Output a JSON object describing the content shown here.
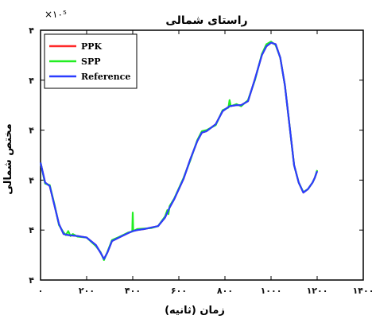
{
  "chart_data": {
    "type": "line",
    "title": "راستای شمالی",
    "xlabel": "زمان (ثانیه)",
    "ylabel": "مختص شمالی",
    "y_exponent_label": "×۱۰⁵",
    "xlim": [
      0,
      1400
    ],
    "ylim": [
      0,
      5
    ],
    "x_ticks": [
      0,
      200,
      400,
      600,
      800,
      1000,
      1200,
      1400
    ],
    "x_tick_labels": [
      "۰",
      "۲۰۰",
      "۴۰۰",
      "۶۰۰",
      "۸۰۰",
      "۱۰۰۰",
      "۱۲۰۰",
      "۱۴۰۰"
    ],
    "y_ticks": [
      0,
      1,
      2,
      3,
      4,
      5
    ],
    "y_tick_labels": [
      "۴",
      "۴",
      "۴",
      "۴",
      "۴",
      "۴"
    ],
    "legend_position": "top-left",
    "grid": false,
    "series": [
      {
        "name": "PPK",
        "color": "#ff2a2a",
        "x": [
          0,
          20,
          40,
          60,
          80,
          100,
          120,
          160,
          200,
          240,
          260,
          275,
          290,
          310,
          340,
          380,
          400,
          420,
          450,
          480,
          510,
          540,
          560,
          580,
          620,
          650,
          680,
          700,
          720,
          760,
          790,
          820,
          850,
          870,
          900,
          930,
          960,
          980,
          1000,
          1020,
          1040,
          1060,
          1080,
          1100,
          1120,
          1140,
          1160,
          1180,
          1190,
          1200
        ],
        "y": [
          2.35,
          1.95,
          1.88,
          1.5,
          1.12,
          0.92,
          0.9,
          0.88,
          0.85,
          0.7,
          0.55,
          0.42,
          0.55,
          0.78,
          0.85,
          0.94,
          0.98,
          1.0,
          1.02,
          1.05,
          1.08,
          1.25,
          1.45,
          1.62,
          2.02,
          2.42,
          2.78,
          2.95,
          2.98,
          3.12,
          3.38,
          3.48,
          3.5,
          3.5,
          3.58,
          4.02,
          4.5,
          4.68,
          4.75,
          4.72,
          4.45,
          3.9,
          3.1,
          2.3,
          1.95,
          1.75,
          1.82,
          1.95,
          2.05,
          2.18
        ]
      },
      {
        "name": "SPP",
        "color": "#22ee22",
        "x": [
          0,
          20,
          40,
          60,
          80,
          100,
          110,
          120,
          130,
          140,
          160,
          200,
          240,
          260,
          275,
          290,
          310,
          340,
          380,
          398,
          400,
          402,
          420,
          450,
          480,
          510,
          540,
          550,
          555,
          560,
          580,
          620,
          650,
          680,
          700,
          720,
          760,
          790,
          815,
          820,
          825,
          850,
          870,
          900,
          930,
          960,
          980,
          1000,
          1020,
          1040,
          1060,
          1080,
          1100,
          1120,
          1140,
          1160,
          1180,
          1190,
          1200
        ],
        "y": [
          2.35,
          1.93,
          1.9,
          1.52,
          1.1,
          0.95,
          0.9,
          0.98,
          0.88,
          0.92,
          0.87,
          0.85,
          0.68,
          0.56,
          0.4,
          0.56,
          0.8,
          0.86,
          0.95,
          0.97,
          1.35,
          0.98,
          1.02,
          1.03,
          1.04,
          1.08,
          1.27,
          1.4,
          1.32,
          1.48,
          1.63,
          2.04,
          2.4,
          2.8,
          2.98,
          3.0,
          3.1,
          3.4,
          3.45,
          3.6,
          3.48,
          3.52,
          3.48,
          3.6,
          4.0,
          4.52,
          4.72,
          4.77,
          4.7,
          4.45,
          3.9,
          3.1,
          2.3,
          1.95,
          1.76,
          1.82,
          1.95,
          2.05,
          2.2
        ]
      },
      {
        "name": "Reference",
        "color": "#2b3cff",
        "x": [
          0,
          20,
          40,
          60,
          80,
          100,
          120,
          160,
          200,
          240,
          260,
          275,
          290,
          310,
          340,
          380,
          400,
          420,
          450,
          480,
          510,
          540,
          560,
          580,
          620,
          650,
          680,
          700,
          720,
          760,
          790,
          820,
          850,
          870,
          900,
          930,
          960,
          980,
          1000,
          1020,
          1040,
          1060,
          1080,
          1100,
          1120,
          1140,
          1160,
          1180,
          1190,
          1200
        ],
        "y": [
          2.35,
          1.95,
          1.88,
          1.5,
          1.12,
          0.92,
          0.9,
          0.88,
          0.85,
          0.7,
          0.55,
          0.42,
          0.55,
          0.78,
          0.85,
          0.94,
          0.98,
          1.0,
          1.02,
          1.05,
          1.08,
          1.25,
          1.45,
          1.62,
          2.02,
          2.42,
          2.78,
          2.95,
          2.98,
          3.12,
          3.38,
          3.48,
          3.5,
          3.5,
          3.58,
          4.02,
          4.5,
          4.68,
          4.75,
          4.72,
          4.45,
          3.9,
          3.1,
          2.3,
          1.95,
          1.75,
          1.82,
          1.95,
          2.05,
          2.18
        ]
      }
    ]
  }
}
